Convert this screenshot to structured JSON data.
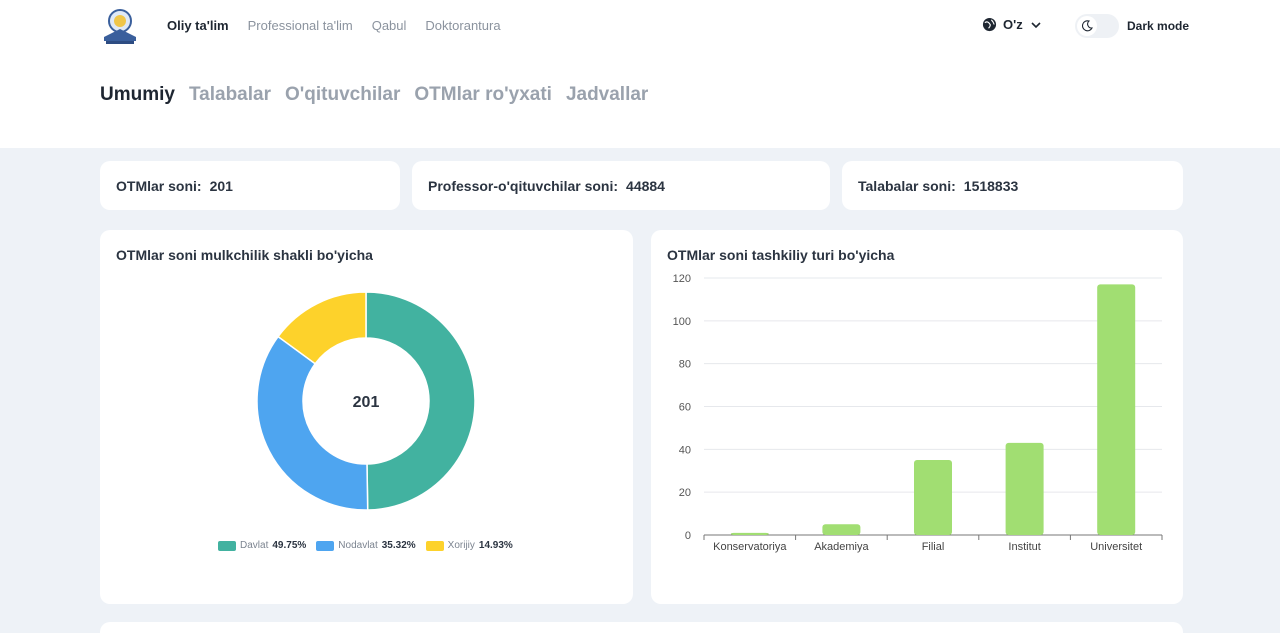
{
  "header": {
    "nav": [
      "Oliy ta'lim",
      "Professional ta'lim",
      "Qabul",
      "Doktorantura"
    ],
    "language": "O'z",
    "dark_mode_label": "Dark mode"
  },
  "subtabs": [
    "Umumiy",
    "Talabalar",
    "O'qituvchilar",
    "OTMlar ro'yxati",
    "Jadvallar"
  ],
  "stats": {
    "otm": {
      "label": "OTMlar soni:",
      "value": "201"
    },
    "teachers": {
      "label": "Professor-o'qituvchilar soni:",
      "value": "44884"
    },
    "students": {
      "label": "Talabalar soni:",
      "value": "1518833"
    }
  },
  "colors": {
    "davlat": "#42b2a0",
    "nodavlat": "#4ea5f0",
    "xorijiy": "#fdd22b",
    "bar": "#a1de72"
  },
  "chart_data": [
    {
      "type": "pie",
      "title": "OTMlar soni mulkchilik shakli bo'yicha",
      "center_label": "201",
      "slices": [
        {
          "name": "Davlat",
          "value": 49.75,
          "label": "49.75%"
        },
        {
          "name": "Nodavlat",
          "value": 35.32,
          "label": "35.32%"
        },
        {
          "name": "Xorijiy",
          "value": 14.93,
          "label": "14.93%"
        }
      ],
      "legend": "bottom"
    },
    {
      "type": "bar",
      "title": "OTMlar soni tashkiliy turi bo'yicha",
      "categories": [
        "Konservatoriya",
        "Akademiya",
        "Filial",
        "Institut",
        "Universitet"
      ],
      "values": [
        1,
        5,
        35,
        43,
        117
      ],
      "ylim": [
        0,
        120
      ],
      "yticks": [
        0,
        20,
        40,
        60,
        80,
        100,
        120
      ],
      "grid": true
    }
  ]
}
